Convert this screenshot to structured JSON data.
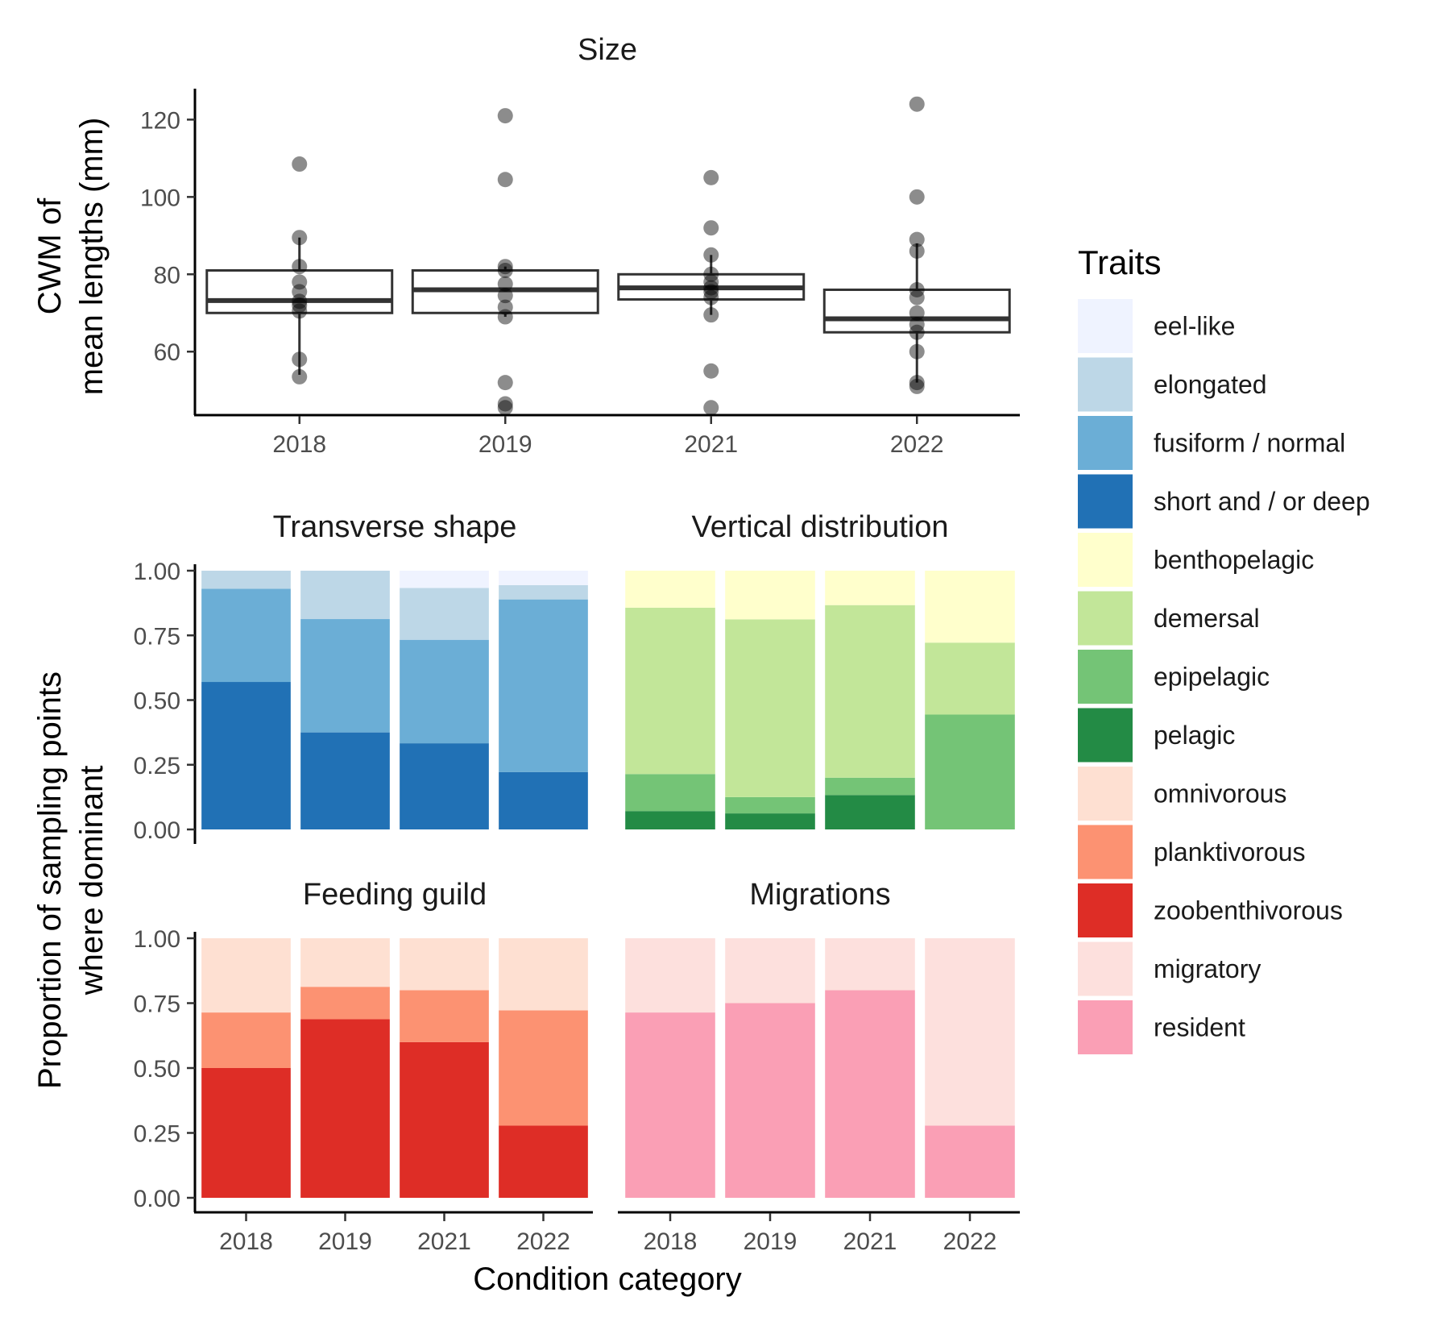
{
  "figure": {
    "size_title": "Size",
    "size_ylabel_line1": "CWM of",
    "size_ylabel_line2": "mean lengths (mm)",
    "prop_ylabel_line1": "Proportion of sampling points",
    "prop_ylabel_line2": "where dominant",
    "xlabel": "Condition category",
    "legend_title": "Traits"
  },
  "chart_data": [
    {
      "type": "box",
      "title": "Size",
      "ylabel": "CWM of mean lengths (mm)",
      "categories": [
        "2018",
        "2019",
        "2021",
        "2022"
      ],
      "ylim": [
        44,
        128
      ],
      "yticks": [
        60,
        80,
        100,
        120
      ],
      "boxes": [
        {
          "category": "2018",
          "q1": 70.0,
          "median": 73.2,
          "q3": 81.0,
          "whisker_low": 54,
          "whisker_high": 89.5
        },
        {
          "category": "2019",
          "q1": 70.0,
          "median": 76.0,
          "q3": 81.0,
          "whisker_low": 69,
          "whisker_high": 82
        },
        {
          "category": "2021",
          "q1": 73.5,
          "median": 76.5,
          "q3": 80.0,
          "whisker_low": 69.5,
          "whisker_high": 85
        },
        {
          "category": "2022",
          "q1": 65.0,
          "median": 68.5,
          "q3": 76.0,
          "whisker_low": 52,
          "whisker_high": 88
        }
      ],
      "points": [
        {
          "category": "2018",
          "values": [
            108.5,
            89.5,
            82,
            78,
            75.5,
            73,
            72,
            70.5,
            58,
            53.5
          ]
        },
        {
          "category": "2019",
          "values": [
            121,
            104.5,
            82,
            81,
            77.5,
            74.5,
            71.5,
            69,
            52,
            46.5,
            45.5
          ]
        },
        {
          "category": "2021",
          "values": [
            105,
            92,
            85,
            80,
            78,
            76.5,
            75.5,
            74,
            69.5,
            55,
            45.5
          ]
        },
        {
          "category": "2022",
          "values": [
            124,
            100,
            89,
            86,
            76,
            74,
            70,
            67,
            65,
            60,
            52,
            51
          ]
        }
      ]
    },
    {
      "type": "bar",
      "stacked": true,
      "title": "Transverse shape",
      "categories": [
        "2018",
        "2019",
        "2021",
        "2022"
      ],
      "ylim": [
        0,
        1
      ],
      "yticks": [
        "0.00",
        "0.25",
        "0.50",
        "0.75",
        "1.00"
      ],
      "series": [
        {
          "name": "short and / or deep",
          "color": "#2171b5",
          "values": [
            0.57,
            0.375,
            0.333,
            0.222
          ]
        },
        {
          "name": "fusiform / normal",
          "color": "#6baed6",
          "values": [
            0.36,
            0.438,
            0.4,
            0.667
          ]
        },
        {
          "name": "elongated",
          "color": "#bdd7e7",
          "values": [
            0.07,
            0.187,
            0.2,
            0.055
          ]
        },
        {
          "name": "eel-like",
          "color": "#eff3ff",
          "values": [
            0,
            0,
            0.067,
            0.056
          ]
        }
      ]
    },
    {
      "type": "bar",
      "stacked": true,
      "title": "Vertical distribution",
      "categories": [
        "2018",
        "2019",
        "2021",
        "2022"
      ],
      "ylim": [
        0,
        1
      ],
      "series": [
        {
          "name": "pelagic",
          "color": "#238b45",
          "values": [
            0.071,
            0.062,
            0.133,
            0
          ]
        },
        {
          "name": "epipelagic",
          "color": "#74c476",
          "values": [
            0.143,
            0.063,
            0.067,
            0.444
          ]
        },
        {
          "name": "demersal",
          "color": "#c2e699",
          "values": [
            0.643,
            0.687,
            0.667,
            0.278
          ]
        },
        {
          "name": "benthopelagic",
          "color": "#ffffcc",
          "values": [
            0.143,
            0.188,
            0.133,
            0.278
          ]
        }
      ]
    },
    {
      "type": "bar",
      "stacked": true,
      "title": "Feeding guild",
      "categories": [
        "2018",
        "2019",
        "2021",
        "2022"
      ],
      "ylim": [
        0,
        1
      ],
      "yticks": [
        "0.00",
        "0.25",
        "0.50",
        "0.75",
        "1.00"
      ],
      "series": [
        {
          "name": "zoobenthivorous",
          "color": "#de2d26",
          "values": [
            0.5,
            0.688,
            0.6,
            0.278
          ]
        },
        {
          "name": "planktivorous",
          "color": "#fc9272",
          "values": [
            0.214,
            0.125,
            0.2,
            0.444
          ]
        },
        {
          "name": "omnivorous",
          "color": "#fee0d2",
          "values": [
            0.286,
            0.187,
            0.2,
            0.278
          ]
        }
      ]
    },
    {
      "type": "bar",
      "stacked": true,
      "title": "Migrations",
      "categories": [
        "2018",
        "2019",
        "2021",
        "2022"
      ],
      "ylim": [
        0,
        1
      ],
      "series": [
        {
          "name": "resident",
          "color": "#fa9fb5",
          "values": [
            0.714,
            0.75,
            0.8,
            0.278
          ]
        },
        {
          "name": "migratory",
          "color": "#fde0dd",
          "values": [
            0.286,
            0.25,
            0.2,
            0.722
          ]
        }
      ]
    }
  ],
  "legend": [
    {
      "label": "eel-like",
      "color": "#eff3ff"
    },
    {
      "label": "elongated",
      "color": "#bdd7e7"
    },
    {
      "label": "fusiform / normal",
      "color": "#6baed6"
    },
    {
      "label": "short and / or deep",
      "color": "#2171b5"
    },
    {
      "label": "benthopelagic",
      "color": "#ffffcc"
    },
    {
      "label": "demersal",
      "color": "#c2e699"
    },
    {
      "label": "epipelagic",
      "color": "#74c476"
    },
    {
      "label": "pelagic",
      "color": "#238b45"
    },
    {
      "label": "omnivorous",
      "color": "#fee0d2"
    },
    {
      "label": "planktivorous",
      "color": "#fc9272"
    },
    {
      "label": "zoobenthivorous",
      "color": "#de2d26"
    },
    {
      "label": "migratory",
      "color": "#fde0dd"
    },
    {
      "label": "resident",
      "color": "#fa9fb5"
    }
  ]
}
